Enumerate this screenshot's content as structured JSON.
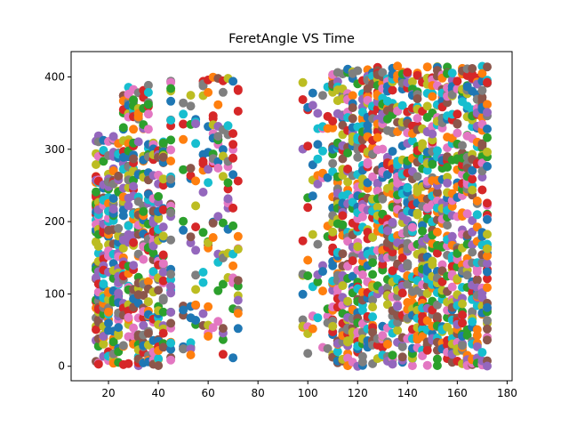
{
  "chart_data": {
    "type": "scatter",
    "title": "FeretAngle VS Time",
    "xlabel": "",
    "ylabel": "",
    "xlim": [
      5,
      182
    ],
    "ylim": [
      -20,
      435
    ],
    "xticks": [
      20,
      40,
      60,
      80,
      100,
      120,
      140,
      160,
      180
    ],
    "yticks": [
      0,
      100,
      200,
      300,
      400
    ],
    "grid": false,
    "legend": "none",
    "series_colors": [
      "#1f77b4",
      "#ff7f0e",
      "#2ca02c",
      "#d62728",
      "#9467bd",
      "#8c564b",
      "#e377c2",
      "#7f7f7f",
      "#bcbd22",
      "#17becf"
    ],
    "time_columns": [
      15,
      16,
      18,
      20,
      22,
      24,
      26,
      28,
      30,
      32,
      34,
      36,
      38,
      40,
      42,
      45,
      50,
      53,
      55,
      58,
      60,
      62,
      64,
      66,
      68,
      70,
      72,
      98,
      100,
      102,
      104,
      106,
      108,
      110,
      112,
      114,
      116,
      118,
      120,
      122,
      124,
      126,
      128,
      130,
      132,
      134,
      136,
      138,
      140,
      142,
      144,
      146,
      148,
      150,
      152,
      154,
      156,
      158,
      160,
      162,
      164,
      166,
      168,
      170,
      172
    ],
    "y_extent": [
      0,
      415
    ]
  }
}
